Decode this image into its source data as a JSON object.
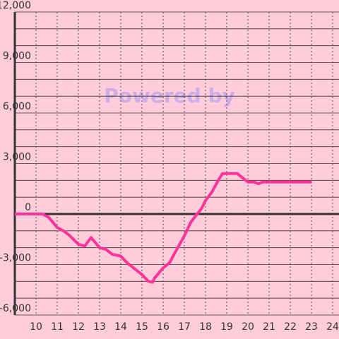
{
  "chart_data": {
    "type": "line",
    "watermark": "Powered by",
    "x": [
      9,
      10.3,
      10.6,
      11,
      11.3,
      11.6,
      12,
      12.3,
      12.6,
      13,
      13.3,
      13.6,
      14,
      14.3,
      14.6,
      15,
      15.3,
      15.5,
      15.6,
      16,
      16.3,
      16.6,
      17,
      17.3,
      17.6,
      17.8,
      18,
      18.3,
      18.6,
      18.8,
      19,
      19.5,
      19.8,
      20,
      20.3,
      20.5,
      20.7,
      21,
      22,
      23
    ],
    "series": [
      {
        "color": "#ff3399",
        "values": [
          0,
          0,
          -200,
          -800,
          -1000,
          -1300,
          -1800,
          -1900,
          -1400,
          -2000,
          -2100,
          -2400,
          -2500,
          -2900,
          -3200,
          -3600,
          -4000,
          -4050,
          -3800,
          -3200,
          -2900,
          -2200,
          -1300,
          -500,
          0,
          300,
          800,
          1300,
          2000,
          2400,
          2400,
          2400,
          2100,
          1900,
          1900,
          1800,
          1900,
          1900,
          1900,
          1900
        ]
      }
    ],
    "xlim": [
      9,
      24.3
    ],
    "xticks": [
      10,
      11,
      12,
      13,
      14,
      15,
      16,
      17,
      18,
      19,
      20,
      21,
      22,
      23,
      24
    ],
    "ylim": [
      -6000,
      12000
    ],
    "yticks": [
      {
        "value": -6000,
        "label": "-6,000"
      },
      {
        "value": -3000,
        "label": "-3,000"
      },
      0,
      {
        "value": 3000,
        "label": "3,000"
      },
      {
        "value": 6000,
        "label": "6,000"
      },
      {
        "value": 9000,
        "label": "9,000"
      },
      {
        "value": 12000,
        "label": "12,000"
      }
    ],
    "minor_yticks": [
      -5000,
      -4000,
      -2000,
      -1000,
      1000,
      2000,
      4000,
      5000,
      7000,
      8000,
      10000,
      11000
    ],
    "grid": true
  }
}
